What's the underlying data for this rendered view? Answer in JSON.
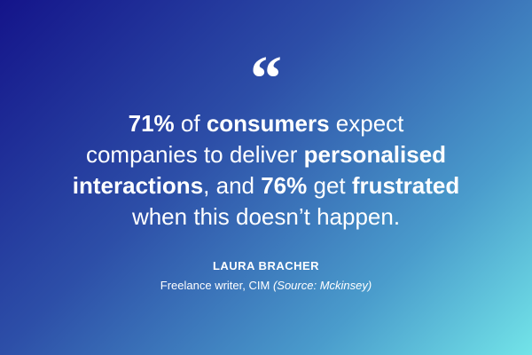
{
  "quote_mark": "“",
  "quote": {
    "lines": [
      [
        {
          "text": "71%",
          "bold": true
        },
        {
          "text": " of ",
          "bold": false
        },
        {
          "text": "consumers",
          "bold": true
        },
        {
          "text": " expect",
          "bold": false
        }
      ],
      [
        {
          "text": "companies to deliver ",
          "bold": false
        },
        {
          "text": "personalised",
          "bold": true
        }
      ],
      [
        {
          "text": "interactions",
          "bold": true
        },
        {
          "text": ", and ",
          "bold": false
        },
        {
          "text": "76%",
          "bold": true
        },
        {
          "text": " get ",
          "bold": false
        },
        {
          "text": "frustrated",
          "bold": true
        }
      ],
      [
        {
          "text": "when this doesn’t happen.",
          "bold": false
        }
      ]
    ]
  },
  "author": {
    "name": "LAURA BRACHER",
    "role": "Freelance writer, CIM",
    "source": "(Source: Mckinsey)"
  }
}
